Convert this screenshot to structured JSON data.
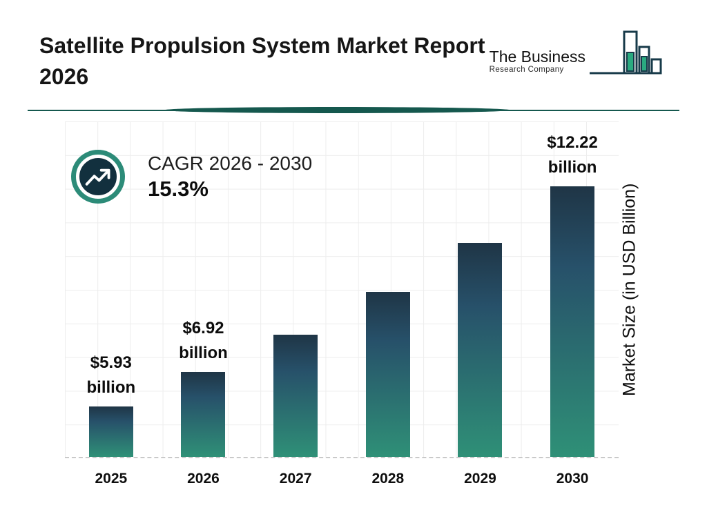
{
  "page": {
    "title": "Satellite Propulsion System Market Report 2026"
  },
  "logo": {
    "line1": "The Business",
    "line2": "Research Company"
  },
  "cagr": {
    "label": "CAGR 2026 - 2030",
    "value": "15.3%"
  },
  "chart_data": {
    "type": "bar",
    "title": "Satellite Propulsion System Market Report 2026",
    "categories": [
      "2025",
      "2026",
      "2027",
      "2028",
      "2029",
      "2030"
    ],
    "values": [
      5.93,
      6.92,
      7.98,
      9.2,
      10.61,
      12.22
    ],
    "bar_labels": [
      "$5.93 billion",
      "$6.92 billion",
      "",
      "",
      "",
      "$12.22 billion"
    ],
    "xlabel": "",
    "ylabel": "Market Size (in USD Billion)",
    "grid": "on",
    "legend": "none",
    "colors": {
      "bar_gradient_top": "#1f3546",
      "bar_gradient_bottom": "#2f9077",
      "divider": "#15584e",
      "badge_ring": "#2c8b78",
      "badge_circle": "#12303e",
      "gridline": "#ededed",
      "logo_teal": "#2aaa80",
      "logo_outline": "#173a49"
    }
  }
}
